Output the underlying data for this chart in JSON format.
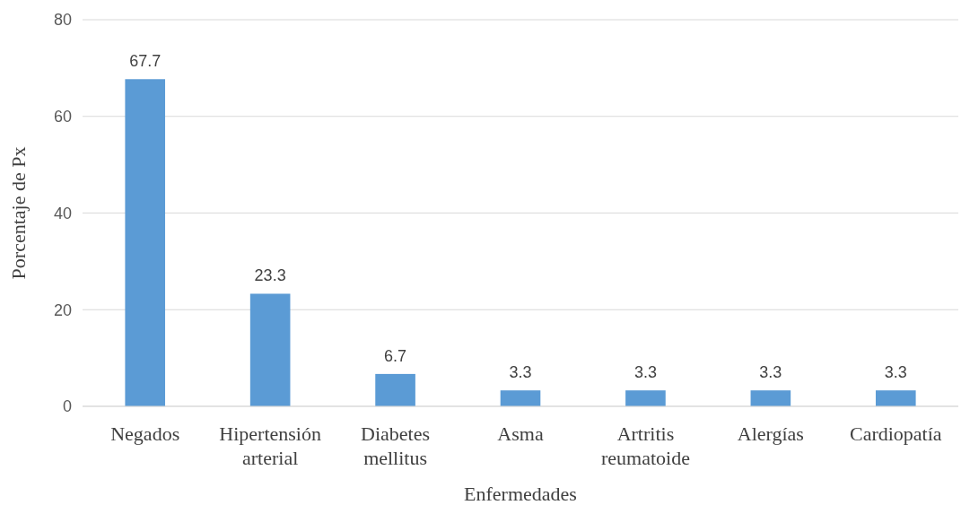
{
  "chart_data": {
    "type": "bar",
    "xlabel": "Enfermedades",
    "ylabel": "Porcentaje de Px",
    "categories": [
      "Negados",
      "Hipertensión arterial",
      "Diabetes mellitus",
      "Asma",
      "Artritis reumatoide",
      "Alergías",
      "Cardiopatía"
    ],
    "values": [
      67.7,
      23.3,
      6.7,
      3.3,
      3.3,
      3.3,
      3.3
    ],
    "color": "#5b9bd5",
    "ylim": [
      0,
      80
    ],
    "yticks": [
      0,
      20,
      40,
      60,
      80
    ],
    "grid": "y",
    "data_labels": true
  }
}
